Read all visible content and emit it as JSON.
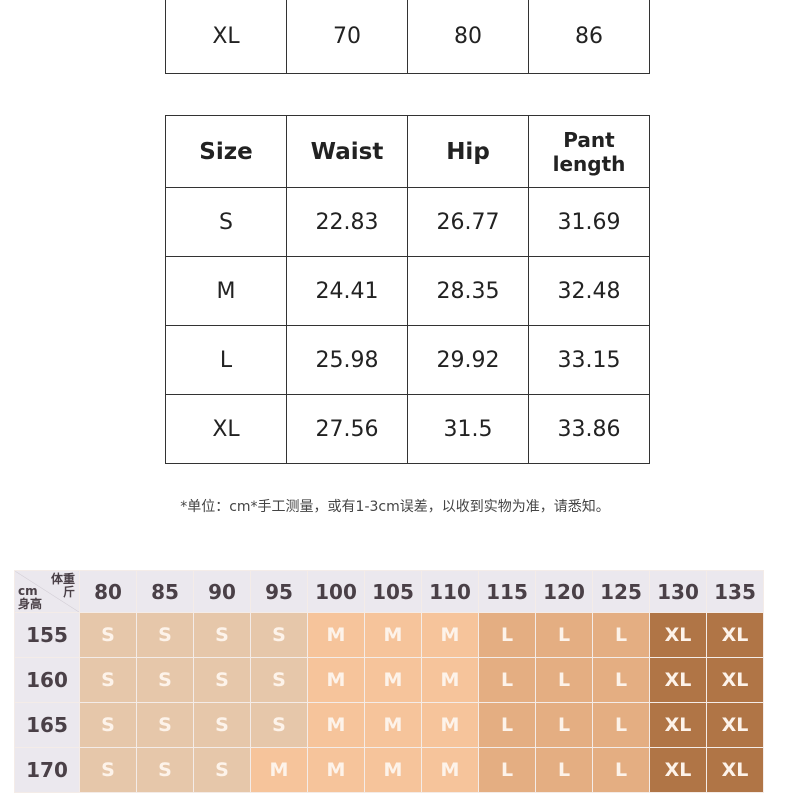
{
  "table_top_fragment": {
    "row": [
      "XL",
      "70",
      "80",
      "86"
    ]
  },
  "table_main": {
    "headers": [
      "Size",
      "Waist",
      "Hip",
      "Pant length"
    ],
    "rows": [
      [
        "S",
        "22.83",
        "26.77",
        "31.69"
      ],
      [
        "M",
        "24.41",
        "28.35",
        "32.48"
      ],
      [
        "L",
        "25.98",
        "29.92",
        "33.15"
      ],
      [
        "XL",
        "27.56",
        "31.5",
        "33.86"
      ]
    ]
  },
  "note": "*单位：cm*手工测量，或有1-3cm误差，以收到实物为准，请悉知。",
  "size_grid": {
    "corner": {
      "weight_label": "体重",
      "weight_unit": "斤",
      "height_unit": "cm",
      "height_label": "身高"
    },
    "weights": [
      "80",
      "85",
      "90",
      "95",
      "100",
      "105",
      "110",
      "115",
      "120",
      "125",
      "130",
      "135"
    ],
    "rows": [
      {
        "height": "155",
        "sizes": [
          "S",
          "S",
          "S",
          "S",
          "M",
          "M",
          "M",
          "L",
          "L",
          "L",
          "XL",
          "XL"
        ]
      },
      {
        "height": "160",
        "sizes": [
          "S",
          "S",
          "S",
          "S",
          "M",
          "M",
          "M",
          "L",
          "L",
          "L",
          "XL",
          "XL"
        ]
      },
      {
        "height": "165",
        "sizes": [
          "S",
          "S",
          "S",
          "S",
          "M",
          "M",
          "M",
          "L",
          "L",
          "L",
          "XL",
          "XL"
        ]
      },
      {
        "height": "170",
        "sizes": [
          "S",
          "S",
          "S",
          "M",
          "M",
          "M",
          "M",
          "L",
          "L",
          "L",
          "XL",
          "XL"
        ]
      }
    ],
    "colors": {
      "S": "#e6c7aa",
      "M": "#f6c49b",
      "L": "#e4ae82",
      "XL": "#b07546",
      "header": "#ebe8ee"
    }
  }
}
